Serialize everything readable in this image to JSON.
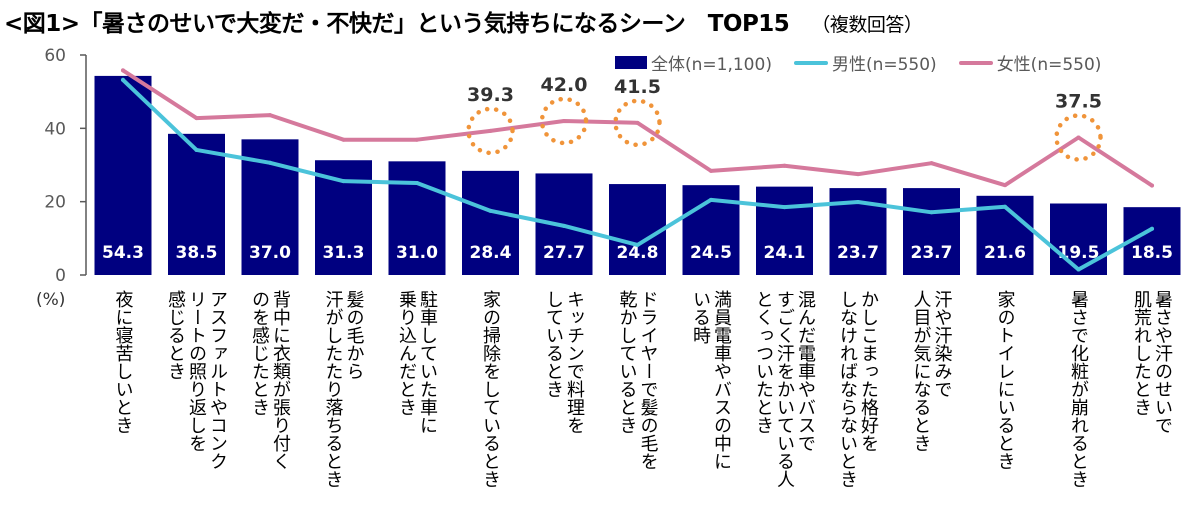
{
  "header": {
    "title": "<図1>「暑さのせいで大変だ・不快だ」という気持ちになるシーン　TOP15",
    "note": "（複数回答）"
  },
  "chart_data": {
    "type": "bar",
    "title": "<図1>「暑さのせいで大変だ・不快だ」という気持ちになるシーン　TOP15",
    "subtitle": "（複数回答）",
    "ylabel": "(%)",
    "xlabel": "",
    "ylim": [
      0,
      60
    ],
    "yticks": [
      0,
      20,
      40,
      60
    ],
    "legend_position": "top-right",
    "categories": [
      [
        "夜に寝苦しいとき"
      ],
      [
        "アスファルトやコンク",
        "リートの照り返しを",
        "感じるとき"
      ],
      [
        "背中に衣類が張り付く",
        "のを感じたとき"
      ],
      [
        "髪の毛から",
        "汗がしたたり落ちるとき"
      ],
      [
        "駐車していた車に",
        "乗り込んだとき"
      ],
      [
        "家の掃除をしているとき"
      ],
      [
        "キッチンで料理を",
        "しているとき"
      ],
      [
        "ドライヤーで髪の毛を",
        "乾かしているとき"
      ],
      [
        "満員電車やバスの中に",
        "いる時"
      ],
      [
        "混んだ電車やバスで",
        "すごく汗をかいている人",
        "とくっついたとき"
      ],
      [
        "かしこまった格好を",
        "しなければならないとき"
      ],
      [
        "汗や汗染みで",
        "人目が気になるとき"
      ],
      [
        "家のトイレにいるとき"
      ],
      [
        "暑さで化粧が崩れるとき"
      ],
      [
        "暑さや汗のせいで",
        "肌荒れしたとき"
      ]
    ],
    "series": [
      {
        "name": "全体(n=1,100)",
        "kind": "bar",
        "color": "#000080",
        "values": [
          54.3,
          38.5,
          37.0,
          31.3,
          31.0,
          28.4,
          27.7,
          24.8,
          24.5,
          24.1,
          23.7,
          23.7,
          21.6,
          19.5,
          18.5
        ]
      },
      {
        "name": "男性(n=550)",
        "kind": "line",
        "color": "#4BC3DA",
        "values": [
          53.2,
          34.1,
          30.6,
          25.6,
          25.1,
          17.5,
          13.4,
          8.2,
          20.5,
          18.5,
          19.9,
          17.1,
          18.6,
          1.5,
          12.6
        ]
      },
      {
        "name": "女性(n=550)",
        "kind": "line",
        "color": "#D5799C",
        "values": [
          55.8,
          42.8,
          43.6,
          36.9,
          36.9,
          39.3,
          42.0,
          41.5,
          28.4,
          29.8,
          27.5,
          30.5,
          24.5,
          37.5,
          24.4
        ]
      }
    ],
    "annotations": [
      {
        "category_index": 5,
        "series": "女性(n=550)",
        "text": "39.3"
      },
      {
        "category_index": 6,
        "series": "女性(n=550)",
        "text": "42.0"
      },
      {
        "category_index": 7,
        "series": "女性(n=550)",
        "text": "41.5"
      },
      {
        "category_index": 13,
        "series": "女性(n=550)",
        "text": "37.5"
      }
    ],
    "annotation_color": "#F0943A"
  }
}
